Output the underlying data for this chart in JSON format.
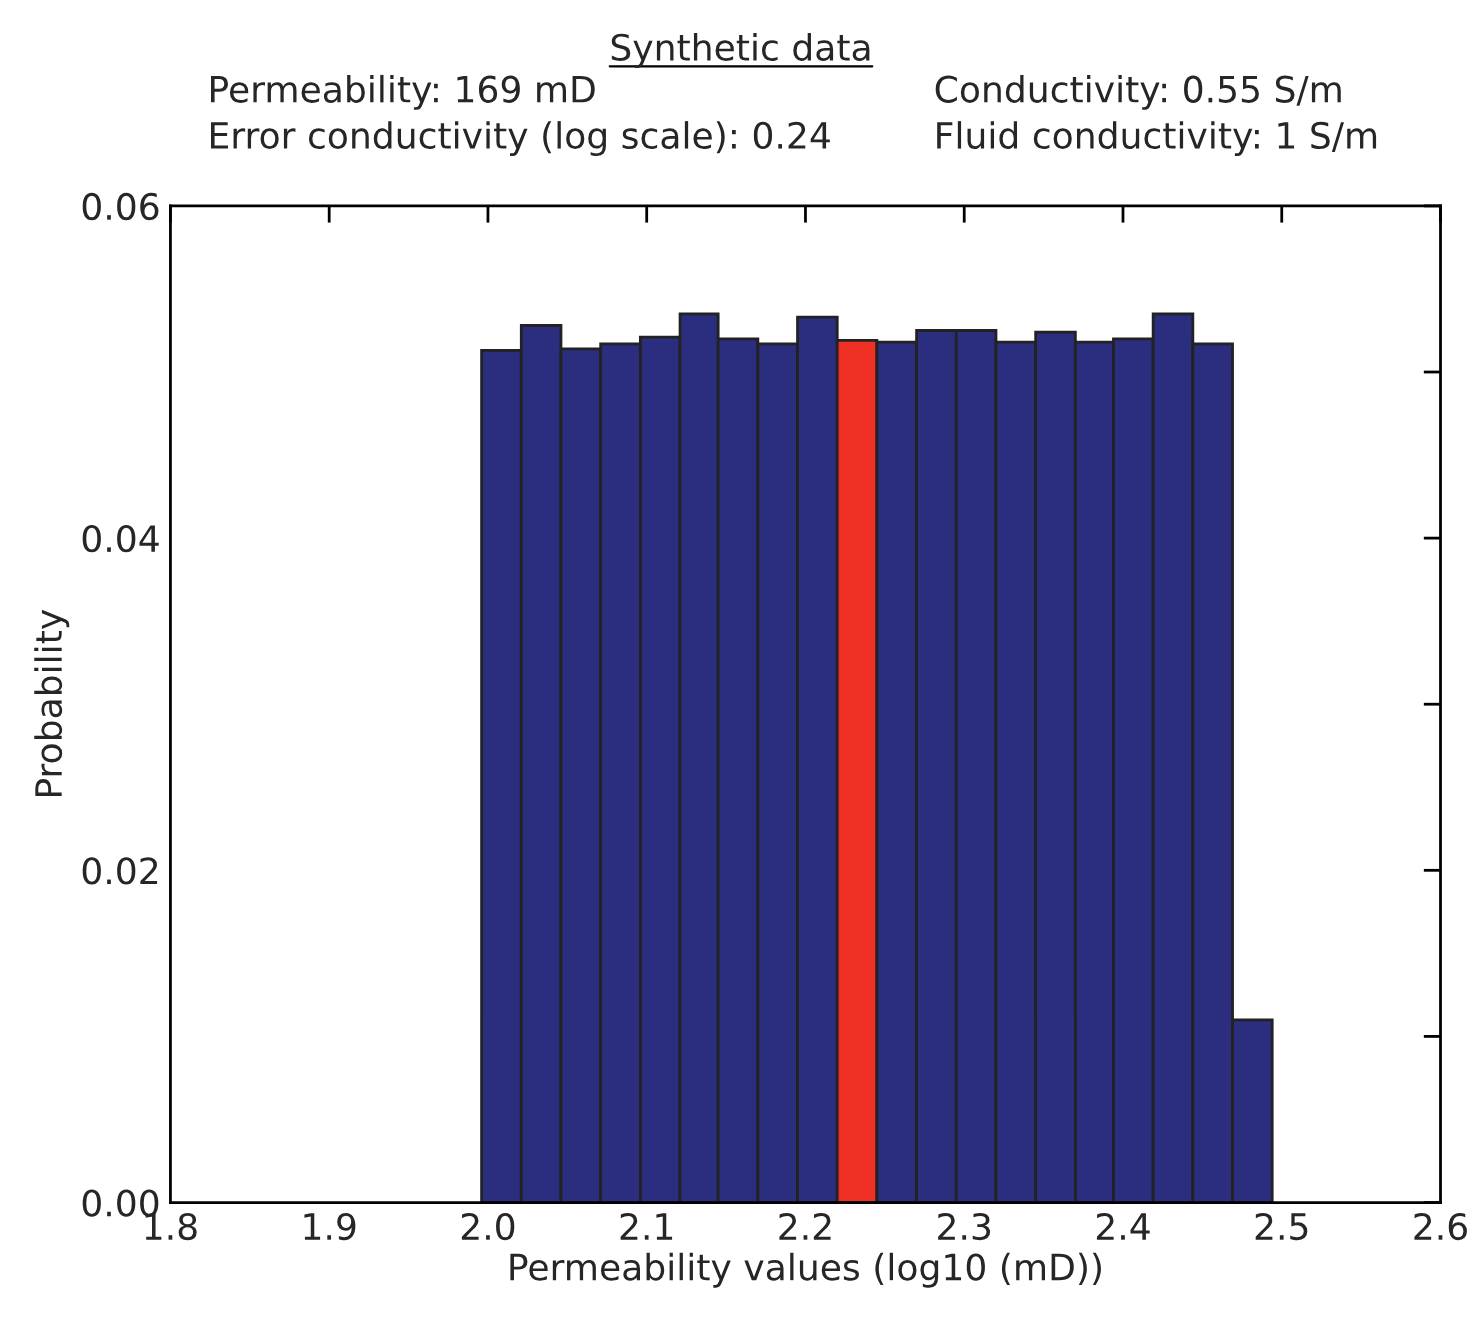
{
  "chart_data": {
    "type": "histogram",
    "title": "Synthetic data",
    "annotations": [
      "Permeability: 169 mD",
      "Conductivity: 0.55 S/m",
      "Error conductivity (log scale): 0.24",
      "Fluid conductivity: 1 S/m"
    ],
    "xlabel": "Permeability values (log10 (mD))",
    "ylabel": "Probability",
    "bins": [
      1.996,
      2.021,
      2.046,
      2.071,
      2.096,
      2.121,
      2.145,
      2.17,
      2.195,
      2.22,
      2.245,
      2.27,
      2.295,
      2.32,
      2.345,
      2.37,
      2.394,
      2.419,
      2.444,
      2.469,
      2.494
    ],
    "values": [
      0.0513,
      0.0528,
      0.0514,
      0.0517,
      0.0521,
      0.0535,
      0.052,
      0.0517,
      0.0533,
      0.0519,
      0.0518,
      0.0525,
      0.0525,
      0.0518,
      0.0524,
      0.0518,
      0.052,
      0.0535,
      0.0517,
      0.011
    ],
    "colors": [
      "#2b2e7e",
      "#2b2e7e",
      "#2b2e7e",
      "#2b2e7e",
      "#2b2e7e",
      "#2b2e7e",
      "#2b2e7e",
      "#2b2e7e",
      "#2b2e7e",
      "#ee3124",
      "#2b2e7e",
      "#2b2e7e",
      "#2b2e7e",
      "#2b2e7e",
      "#2b2e7e",
      "#2b2e7e",
      "#2b2e7e",
      "#2b2e7e",
      "#2b2e7e",
      "#2b2e7e"
    ],
    "xlim": [
      1.8,
      2.6
    ],
    "xticks": [
      1.8,
      1.9,
      {
        "value": 2,
        "label": "2.0"
      },
      2.1,
      2.2,
      2.3,
      2.4,
      2.5,
      2.6
    ],
    "ylim": [
      0,
      0.06
    ],
    "yticks": [
      {
        "value": 0,
        "label": "0.00"
      },
      {
        "value": 0.01,
        "label": null
      },
      {
        "value": 0.02,
        "label": "0.02"
      },
      {
        "value": 0.03,
        "label": null
      },
      {
        "value": 0.04,
        "label": "0.04"
      },
      {
        "value": 0.05,
        "label": null
      },
      {
        "value": 0.06,
        "label": "0.06"
      }
    ],
    "grid": false,
    "legend": false
  }
}
